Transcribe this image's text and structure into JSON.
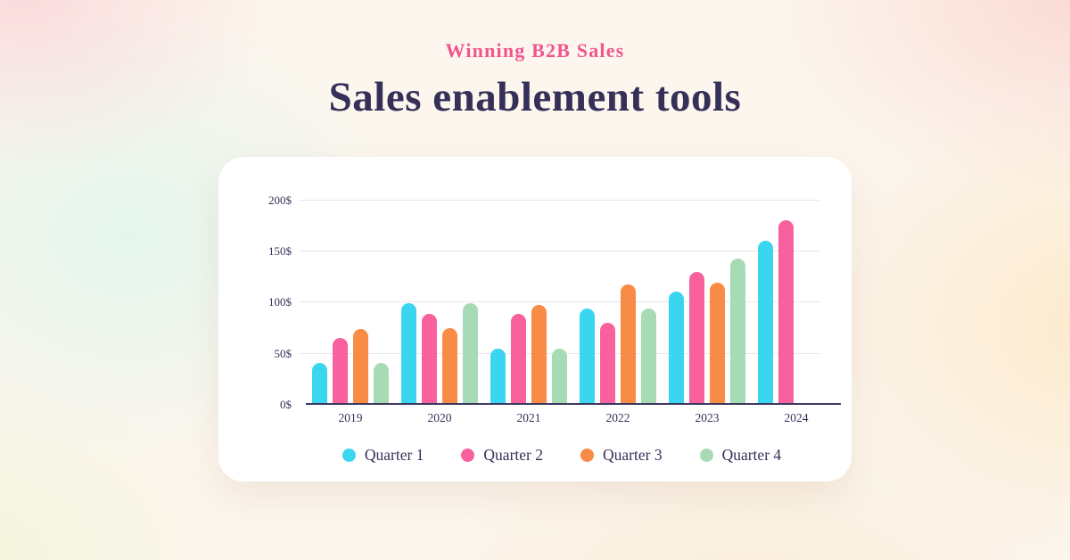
{
  "header": {
    "subtitle": "Winning B2B Sales",
    "title": "Sales enablement tools"
  },
  "colors": {
    "accent_pink": "#f2548f",
    "heading_navy": "#343058",
    "card_background": "#ffffff",
    "axis": "#3d3960",
    "gridline": "#e7e6ee"
  },
  "chart_data": {
    "type": "bar",
    "title": "",
    "xlabel": "",
    "ylabel": "",
    "categories": [
      "2019",
      "2020",
      "2021",
      "2022",
      "2023",
      "2024"
    ],
    "series": [
      {
        "name": "Quarter 1",
        "color": "#3ad6ef",
        "values": [
          40,
          99,
          54,
          93,
          110,
          160
        ]
      },
      {
        "name": "Quarter 2",
        "color": "#f8609e",
        "values": [
          64,
          88,
          88,
          79,
          129,
          180
        ]
      },
      {
        "name": "Quarter 3",
        "color": "#f88b45",
        "values": [
          73,
          74,
          97,
          117,
          119,
          null
        ]
      },
      {
        "name": "Quarter 4",
        "color": "#a7dbb5",
        "values": [
          40,
          99,
          54,
          93,
          143,
          null
        ]
      }
    ],
    "yticks": [
      "0$",
      "50$",
      "100$",
      "150$",
      "200$"
    ],
    "ytick_values": [
      0,
      50,
      100,
      150,
      200
    ],
    "ylim": [
      0,
      220
    ],
    "grid": true,
    "legend_position": "bottom"
  }
}
